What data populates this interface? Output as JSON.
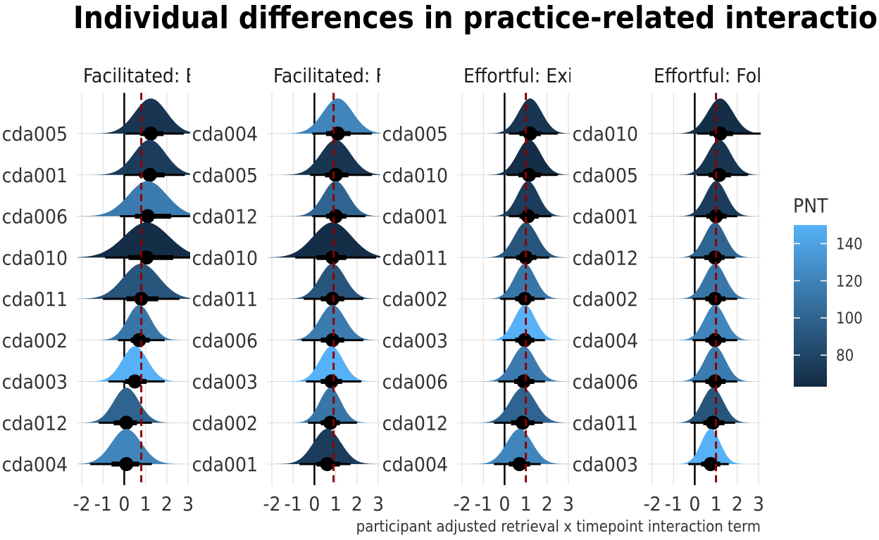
{
  "title": "Individual differences in practice-related interaction effect",
  "xlabel": "participant adjusted retrieval x timepoint interaction term",
  "legend": {
    "title": "PNT",
    "ticks": [
      80,
      100,
      120,
      140
    ],
    "range": [
      63,
      150
    ],
    "colors": {
      "low": "#132B43",
      "high": "#56B1F7"
    }
  },
  "colors": {
    "reference_line": "#000000",
    "mean_line": "#8B0000",
    "grid": "#D9D9D9",
    "point": "#000000"
  },
  "chart_data": [
    {
      "type": "halfeye",
      "panel_label": "Facilitated: E",
      "xlim": [
        -2.2,
        3.1
      ],
      "x_ticks": [
        -2,
        -1,
        0,
        1,
        2,
        3
      ],
      "reference_x": 0,
      "mean_x": 0.8,
      "rows": [
        {
          "participant": "cda005",
          "median": 1.25,
          "q66": [
            0.75,
            1.85
          ],
          "q95": [
            0.05,
            2.8
          ],
          "sd": 0.75,
          "pnt": 70
        },
        {
          "participant": "cda001",
          "median": 1.2,
          "q66": [
            0.7,
            1.9
          ],
          "q95": [
            0.0,
            2.85
          ],
          "sd": 0.75,
          "pnt": 74
        },
        {
          "participant": "cda006",
          "median": 1.1,
          "q66": [
            0.5,
            2.2
          ],
          "q95": [
            -0.2,
            3.1
          ],
          "sd": 0.9,
          "pnt": 115
        },
        {
          "participant": "cda010",
          "median": 1.05,
          "q66": [
            0.2,
            2.3
          ],
          "q95": [
            -0.9,
            3.2
          ],
          "sd": 1.05,
          "pnt": 65
        },
        {
          "participant": "cda011",
          "median": 0.8,
          "q66": [
            0.1,
            1.6
          ],
          "q95": [
            -1.0,
            2.6
          ],
          "sd": 0.85,
          "pnt": 90
        },
        {
          "participant": "cda002",
          "median": 0.7,
          "q66": [
            0.3,
            1.2
          ],
          "q95": [
            -0.3,
            1.9
          ],
          "sd": 0.55,
          "pnt": 112
        },
        {
          "participant": "cda003",
          "median": 0.5,
          "q66": [
            0.05,
            1.05
          ],
          "q95": [
            -0.75,
            1.9
          ],
          "sd": 0.6,
          "pnt": 150
        },
        {
          "participant": "cda012",
          "median": 0.1,
          "q66": [
            -0.5,
            0.6
          ],
          "q95": [
            -1.2,
            1.3
          ],
          "sd": 0.6,
          "pnt": 100
        },
        {
          "participant": "cda004",
          "median": 0.1,
          "q66": [
            -0.6,
            0.7
          ],
          "q95": [
            -1.6,
            1.3
          ],
          "sd": 0.7,
          "pnt": 122
        }
      ]
    },
    {
      "type": "halfeye",
      "panel_label": "Facilitated: F",
      "xlim": [
        -2.2,
        3.1
      ],
      "x_ticks": [
        -2,
        -1,
        0,
        1,
        2,
        3
      ],
      "reference_x": 0,
      "mean_x": 0.9,
      "rows": [
        {
          "participant": "cda004",
          "median": 1.1,
          "q66": [
            0.55,
            1.7
          ],
          "q95": [
            -0.1,
            2.7
          ],
          "sd": 0.7,
          "pnt": 122
        },
        {
          "participant": "cda005",
          "median": 1.0,
          "q66": [
            0.5,
            1.6
          ],
          "q95": [
            -0.2,
            2.7
          ],
          "sd": 0.7,
          "pnt": 70
        },
        {
          "participant": "cda012",
          "median": 1.0,
          "q66": [
            0.55,
            1.5
          ],
          "q95": [
            -0.1,
            2.4
          ],
          "sd": 0.6,
          "pnt": 100
        },
        {
          "participant": "cda010",
          "median": 0.85,
          "q66": [
            0.1,
            1.5
          ],
          "q95": [
            -0.9,
            2.9
          ],
          "sd": 0.9,
          "pnt": 65
        },
        {
          "participant": "cda011",
          "median": 0.85,
          "q66": [
            0.3,
            1.4
          ],
          "q95": [
            -0.5,
            2.3
          ],
          "sd": 0.6,
          "pnt": 90
        },
        {
          "participant": "cda006",
          "median": 0.85,
          "q66": [
            0.3,
            1.4
          ],
          "q95": [
            -0.6,
            2.3
          ],
          "sd": 0.6,
          "pnt": 115
        },
        {
          "participant": "cda003",
          "median": 0.8,
          "q66": [
            0.3,
            1.3
          ],
          "q95": [
            -0.4,
            2.2
          ],
          "sd": 0.55,
          "pnt": 150
        },
        {
          "participant": "cda002",
          "median": 0.75,
          "q66": [
            0.3,
            1.2
          ],
          "q95": [
            -0.3,
            2.0
          ],
          "sd": 0.5,
          "pnt": 112
        },
        {
          "participant": "cda001",
          "median": 0.6,
          "q66": [
            0.1,
            1.2
          ],
          "q95": [
            -0.7,
            1.7
          ],
          "sd": 0.65,
          "pnt": 74
        }
      ]
    },
    {
      "type": "halfeye",
      "panel_label": "Effortful: Exi",
      "xlim": [
        -2.2,
        3.1
      ],
      "x_ticks": [
        -2,
        -1,
        0,
        1,
        2,
        3
      ],
      "reference_x": 0,
      "mean_x": 1.0,
      "rows": [
        {
          "participant": "cda005",
          "median": 1.2,
          "q66": [
            0.7,
            1.7
          ],
          "q95": [
            0.2,
            2.5
          ],
          "sd": 0.55,
          "pnt": 70
        },
        {
          "participant": "cda010",
          "median": 1.15,
          "q66": [
            0.65,
            1.7
          ],
          "q95": [
            0.1,
            2.5
          ],
          "sd": 0.55,
          "pnt": 65
        },
        {
          "participant": "cda001",
          "median": 1.1,
          "q66": [
            0.7,
            1.6
          ],
          "q95": [
            0.2,
            2.2
          ],
          "sd": 0.5,
          "pnt": 74
        },
        {
          "participant": "cda011",
          "median": 1.0,
          "q66": [
            0.55,
            1.5
          ],
          "q95": [
            0.0,
            2.1
          ],
          "sd": 0.55,
          "pnt": 90
        },
        {
          "participant": "cda002",
          "median": 0.95,
          "q66": [
            0.5,
            1.4
          ],
          "q95": [
            -0.2,
            1.9
          ],
          "sd": 0.5,
          "pnt": 112
        },
        {
          "participant": "cda003",
          "median": 0.95,
          "q66": [
            0.5,
            1.4
          ],
          "q95": [
            -0.1,
            1.9
          ],
          "sd": 0.5,
          "pnt": 150
        },
        {
          "participant": "cda006",
          "median": 0.9,
          "q66": [
            0.45,
            1.4
          ],
          "q95": [
            -0.3,
            1.9
          ],
          "sd": 0.55,
          "pnt": 115
        },
        {
          "participant": "cda012",
          "median": 0.85,
          "q66": [
            0.3,
            1.4
          ],
          "q95": [
            -0.5,
            1.8
          ],
          "sd": 0.6,
          "pnt": 100
        },
        {
          "participant": "cda004",
          "median": 0.7,
          "q66": [
            0.2,
            1.2
          ],
          "q95": [
            -0.5,
            1.7
          ],
          "sd": 0.6,
          "pnt": 122
        }
      ]
    },
    {
      "type": "halfeye",
      "panel_label": "Effortful: Fol",
      "xlim": [
        -2.2,
        3.1
      ],
      "x_ticks": [
        -2,
        -1,
        0,
        1,
        2,
        3
      ],
      "reference_x": 0,
      "mean_x": 1.0,
      "rows": [
        {
          "participant": "cda010",
          "median": 1.2,
          "q66": [
            0.7,
            1.8
          ],
          "q95": [
            0.1,
            3.1
          ],
          "sd": 0.6,
          "pnt": 65
        },
        {
          "participant": "cda005",
          "median": 1.15,
          "q66": [
            0.65,
            1.7
          ],
          "q95": [
            0.1,
            2.5
          ],
          "sd": 0.55,
          "pnt": 70
        },
        {
          "participant": "cda001",
          "median": 1.0,
          "q66": [
            0.55,
            1.5
          ],
          "q95": [
            0.0,
            2.0
          ],
          "sd": 0.5,
          "pnt": 74
        },
        {
          "participant": "cda012",
          "median": 0.95,
          "q66": [
            0.45,
            1.4
          ],
          "q95": [
            -0.2,
            1.9
          ],
          "sd": 0.5,
          "pnt": 100
        },
        {
          "participant": "cda002",
          "median": 0.95,
          "q66": [
            0.5,
            1.45
          ],
          "q95": [
            -0.1,
            2.0
          ],
          "sd": 0.5,
          "pnt": 112
        },
        {
          "participant": "cda004",
          "median": 0.95,
          "q66": [
            0.5,
            1.45
          ],
          "q95": [
            -0.1,
            2.0
          ],
          "sd": 0.5,
          "pnt": 122
        },
        {
          "participant": "cda006",
          "median": 0.95,
          "q66": [
            0.5,
            1.45
          ],
          "q95": [
            -0.1,
            2.0
          ],
          "sd": 0.5,
          "pnt": 115
        },
        {
          "participant": "cda011",
          "median": 0.85,
          "q66": [
            0.4,
            1.4
          ],
          "q95": [
            -0.2,
            1.9
          ],
          "sd": 0.5,
          "pnt": 90
        },
        {
          "participant": "cda003",
          "median": 0.75,
          "q66": [
            0.3,
            1.2
          ],
          "q95": [
            -0.3,
            1.6
          ],
          "sd": 0.45,
          "pnt": 150
        }
      ]
    }
  ]
}
